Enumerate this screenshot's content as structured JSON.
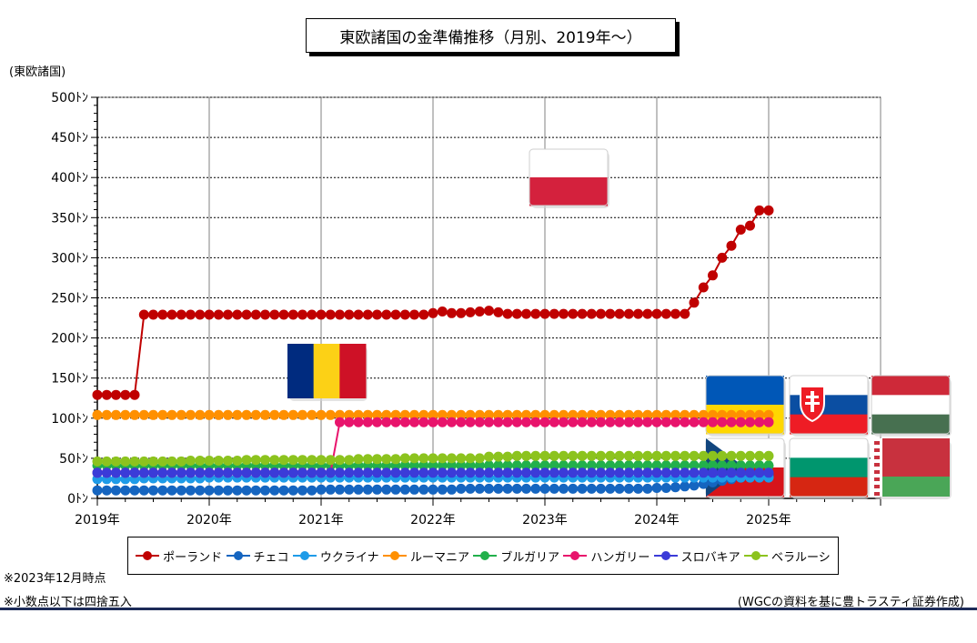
{
  "title": "東欧諸国の金準備推移（月別、2019年〜）",
  "unit_label": "(東欧諸国)",
  "notes": [
    "※2023年12月時点",
    "※小数点以下は四捨五入"
  ],
  "source": "(WGCの資料を基に豊トラスティ証券作成)",
  "chart_data": {
    "type": "line",
    "y_ticks": [
      "0ﾄﾝ",
      "50ﾄﾝ",
      "100ﾄﾝ",
      "150ﾄﾝ",
      "200ﾄﾝ",
      "250ﾄﾝ",
      "300ﾄﾝ",
      "350ﾄﾝ",
      "400ﾄﾝ",
      "450ﾄﾝ",
      "500ﾄﾝ"
    ],
    "ylim": [
      0,
      500
    ],
    "x_ticks": [
      "2019年",
      "2020年",
      "2021年",
      "2022年",
      "2023年",
      "2024年",
      "2025年"
    ],
    "x_range_months": [
      0,
      84
    ],
    "grid": true,
    "legend_position": "bottom",
    "flags": [
      "Poland",
      "Romania",
      "Ukraine",
      "Slovakia",
      "Hungary",
      "Czech Republic",
      "Bulgaria",
      "Belarus"
    ],
    "series": [
      {
        "name": "ポーランド",
        "color": "#c00000",
        "values": [
          129,
          129,
          129,
          129,
          129,
          229,
          229,
          229,
          229,
          229,
          229,
          229,
          229,
          229,
          229,
          229,
          229,
          229,
          229,
          229,
          229,
          229,
          229,
          229,
          229,
          229,
          229,
          229,
          229,
          229,
          229,
          229,
          229,
          229,
          229,
          229,
          231,
          233,
          231,
          231,
          232,
          233,
          234,
          232,
          230,
          230,
          230,
          230,
          230,
          230,
          230,
          230,
          230,
          230,
          230,
          230,
          230,
          230,
          230,
          230,
          230,
          230,
          230,
          230,
          244,
          263,
          278,
          300,
          315,
          335,
          340,
          359,
          359
        ]
      },
      {
        "name": "チェコ",
        "color": "#1565c0",
        "values": [
          10,
          10,
          10,
          10,
          10,
          10,
          10,
          10,
          10,
          10,
          10,
          10,
          10,
          10,
          10,
          10,
          10,
          10,
          10,
          10,
          10,
          10,
          10,
          10,
          11,
          11,
          11,
          11,
          11,
          11,
          11,
          11,
          11,
          11,
          11,
          11,
          11,
          11,
          11,
          12,
          12,
          12,
          12,
          12,
          12,
          12,
          12,
          12,
          12,
          12,
          12,
          12,
          12,
          12,
          12,
          12,
          12,
          12,
          12,
          12,
          13,
          13,
          14,
          15,
          16,
          18,
          20,
          22,
          24,
          26,
          27,
          28,
          29
        ]
      },
      {
        "name": "ウクライナ",
        "color": "#1e9be8",
        "values": [
          24,
          24,
          24,
          24,
          24,
          25,
          25,
          25,
          25,
          25,
          25,
          25,
          26,
          26,
          26,
          26,
          26,
          26,
          26,
          26,
          26,
          26,
          26,
          26,
          26,
          26,
          26,
          26,
          26,
          26,
          26,
          26,
          26,
          26,
          26,
          26,
          26,
          26,
          26,
          26,
          26,
          26,
          26,
          26,
          26,
          26,
          26,
          26,
          26,
          26,
          26,
          26,
          26,
          26,
          26,
          26,
          26,
          26,
          26,
          26,
          26,
          26,
          26,
          26,
          26,
          26,
          26,
          26,
          26,
          26,
          26,
          26,
          26
        ]
      },
      {
        "name": "ルーマニア",
        "color": "#ff9000",
        "values": [
          104,
          104,
          104,
          104,
          104,
          104,
          104,
          104,
          104,
          104,
          104,
          104,
          104,
          104,
          104,
          104,
          104,
          104,
          104,
          104,
          104,
          104,
          104,
          104,
          104,
          104,
          104,
          104,
          104,
          104,
          104,
          104,
          104,
          104,
          104,
          104,
          104,
          104,
          104,
          104,
          104,
          104,
          104,
          104,
          104,
          104,
          104,
          104,
          104,
          104,
          104,
          104,
          104,
          104,
          104,
          104,
          104,
          104,
          104,
          104,
          104,
          104,
          104,
          104,
          104,
          104,
          104,
          104,
          104,
          104,
          104,
          104,
          104
        ]
      },
      {
        "name": "ブルガリア",
        "color": "#22b04b",
        "values": [
          41,
          41,
          41,
          41,
          41,
          41,
          41,
          41,
          41,
          41,
          41,
          41,
          41,
          41,
          41,
          41,
          41,
          41,
          41,
          41,
          41,
          41,
          41,
          41,
          41,
          41,
          41,
          41,
          41,
          41,
          41,
          41,
          41,
          41,
          41,
          41,
          41,
          41,
          41,
          41,
          41,
          41,
          41,
          41,
          41,
          41,
          41,
          41,
          41,
          41,
          41,
          41,
          41,
          41,
          41,
          41,
          41,
          41,
          41,
          41,
          41,
          41,
          41,
          41,
          41,
          41,
          41,
          41,
          41,
          41,
          41,
          41,
          41
        ]
      },
      {
        "name": "ハンガリー",
        "color": "#e8146c",
        "values": [
          32,
          32,
          32,
          32,
          32,
          32,
          32,
          32,
          32,
          32,
          32,
          32,
          32,
          32,
          32,
          32,
          32,
          32,
          32,
          32,
          32,
          32,
          32,
          32,
          32,
          32,
          95,
          95,
          95,
          95,
          95,
          95,
          95,
          95,
          95,
          95,
          95,
          95,
          95,
          95,
          95,
          95,
          95,
          95,
          95,
          95,
          95,
          95,
          95,
          95,
          95,
          95,
          95,
          95,
          95,
          95,
          95,
          95,
          95,
          95,
          95,
          95,
          95,
          95,
          95,
          95,
          95,
          95,
          95,
          95,
          95,
          95,
          95
        ]
      },
      {
        "name": "スロバキア",
        "color": "#3b3bd8",
        "values": [
          32,
          32,
          32,
          32,
          32,
          32,
          32,
          32,
          32,
          32,
          32,
          32,
          32,
          32,
          32,
          32,
          32,
          32,
          32,
          32,
          32,
          32,
          32,
          32,
          32,
          32,
          32,
          32,
          32,
          32,
          32,
          32,
          32,
          32,
          32,
          32,
          32,
          32,
          32,
          32,
          32,
          32,
          32,
          32,
          32,
          32,
          32,
          32,
          32,
          32,
          32,
          32,
          32,
          32,
          32,
          32,
          32,
          32,
          32,
          32,
          32,
          32,
          32,
          32,
          32,
          32,
          32,
          32,
          32,
          32,
          32,
          32,
          32
        ]
      },
      {
        "name": "ベラルーシ",
        "color": "#8cc31e",
        "values": [
          46,
          46,
          46,
          46,
          46,
          46,
          46,
          46,
          46,
          46,
          47,
          47,
          47,
          47,
          47,
          47,
          48,
          48,
          48,
          48,
          48,
          48,
          48,
          48,
          48,
          48,
          48,
          48,
          49,
          49,
          49,
          49,
          49,
          50,
          50,
          50,
          50,
          50,
          50,
          50,
          50,
          50,
          52,
          52,
          52,
          53,
          53,
          53,
          53,
          53,
          53,
          53,
          53,
          53,
          53,
          53,
          53,
          53,
          53,
          53,
          53,
          53,
          53,
          53,
          53,
          53,
          53,
          53,
          53,
          53,
          53,
          53,
          53
        ]
      }
    ]
  }
}
